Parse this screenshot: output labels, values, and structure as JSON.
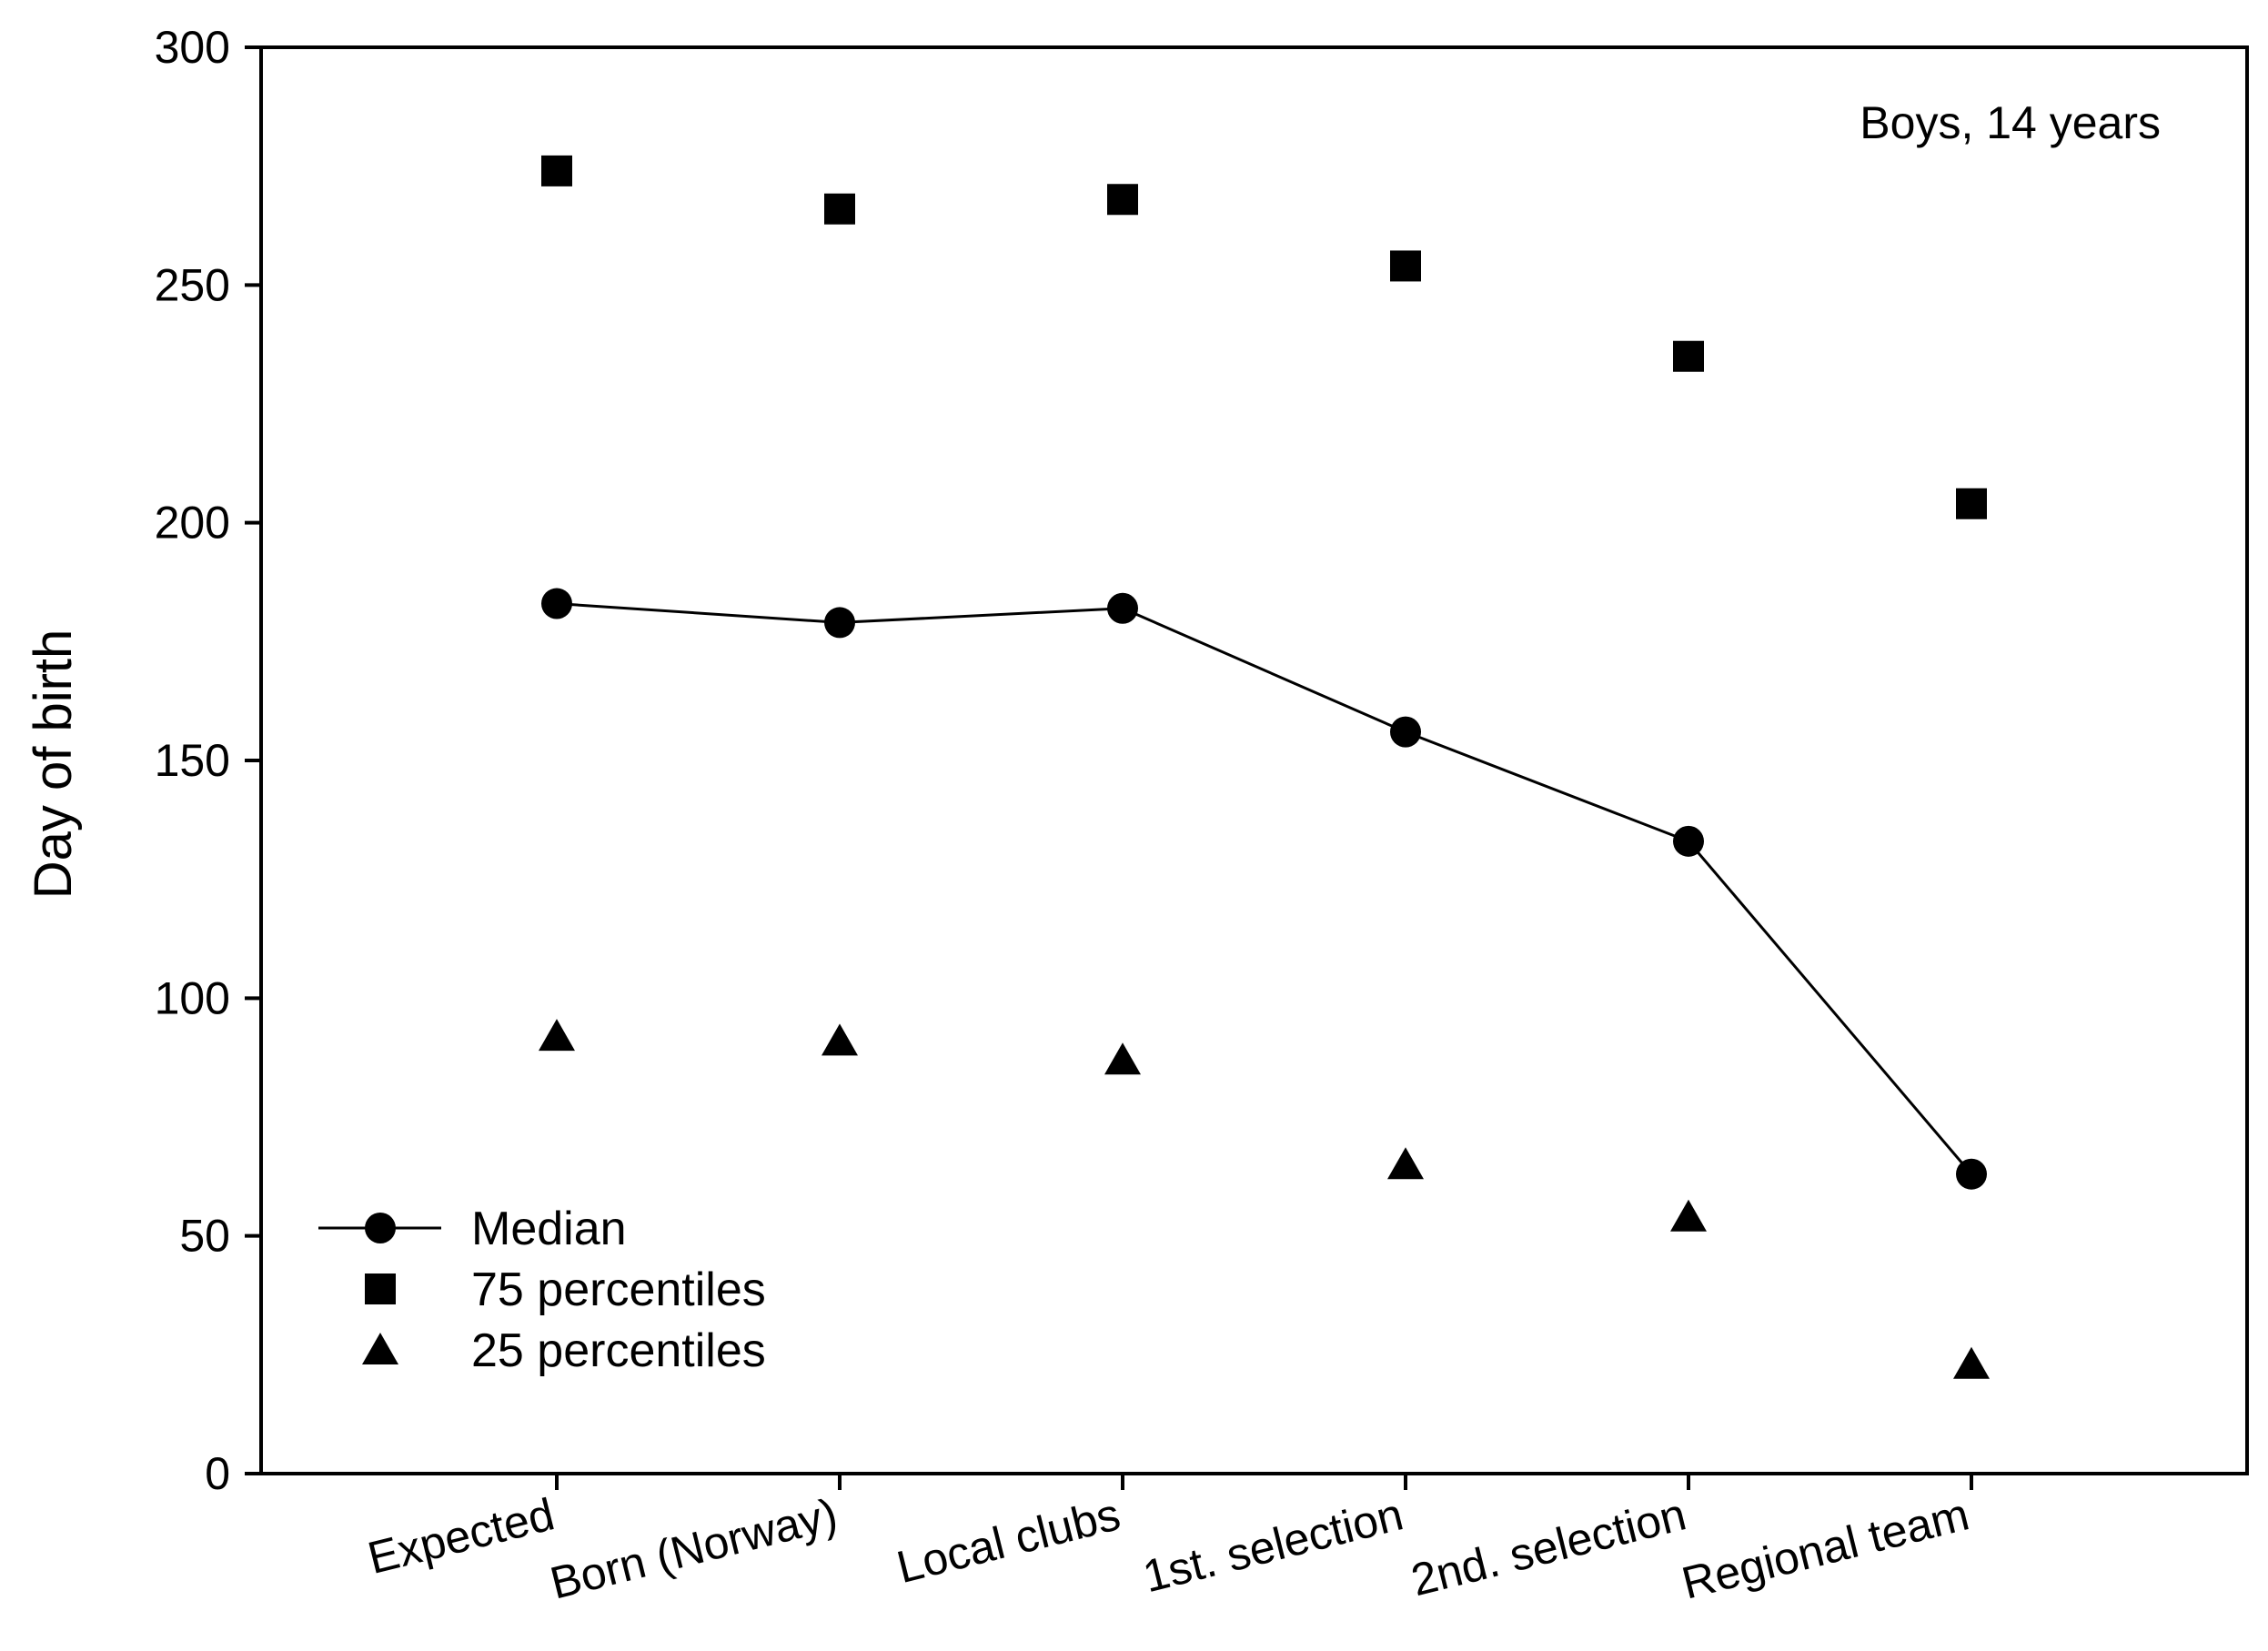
{
  "chart_data": {
    "type": "scatter",
    "title": "",
    "annotation": "Boys, 14 years",
    "xlabel": "",
    "ylabel": "Day of birth",
    "ylim": [
      0,
      300
    ],
    "yticks": [
      0,
      50,
      100,
      150,
      200,
      250,
      300
    ],
    "categories": [
      "Expected",
      "Born (Norway)",
      "Local clubs",
      "1st. selection",
      "2nd. selection",
      "Regional team"
    ],
    "series": [
      {
        "name": "Median",
        "marker": "circle",
        "line": true,
        "values": [
          183,
          179,
          182,
          156,
          133,
          63
        ]
      },
      {
        "name": "75 percentiles",
        "marker": "square",
        "line": false,
        "values": [
          274,
          266,
          268,
          254,
          235,
          204
        ]
      },
      {
        "name": "25 percentiles",
        "marker": "triangle",
        "line": false,
        "values": [
          92,
          91,
          87,
          65,
          54,
          23
        ]
      }
    ],
    "legend_position": "bottom-left",
    "grid": false
  }
}
